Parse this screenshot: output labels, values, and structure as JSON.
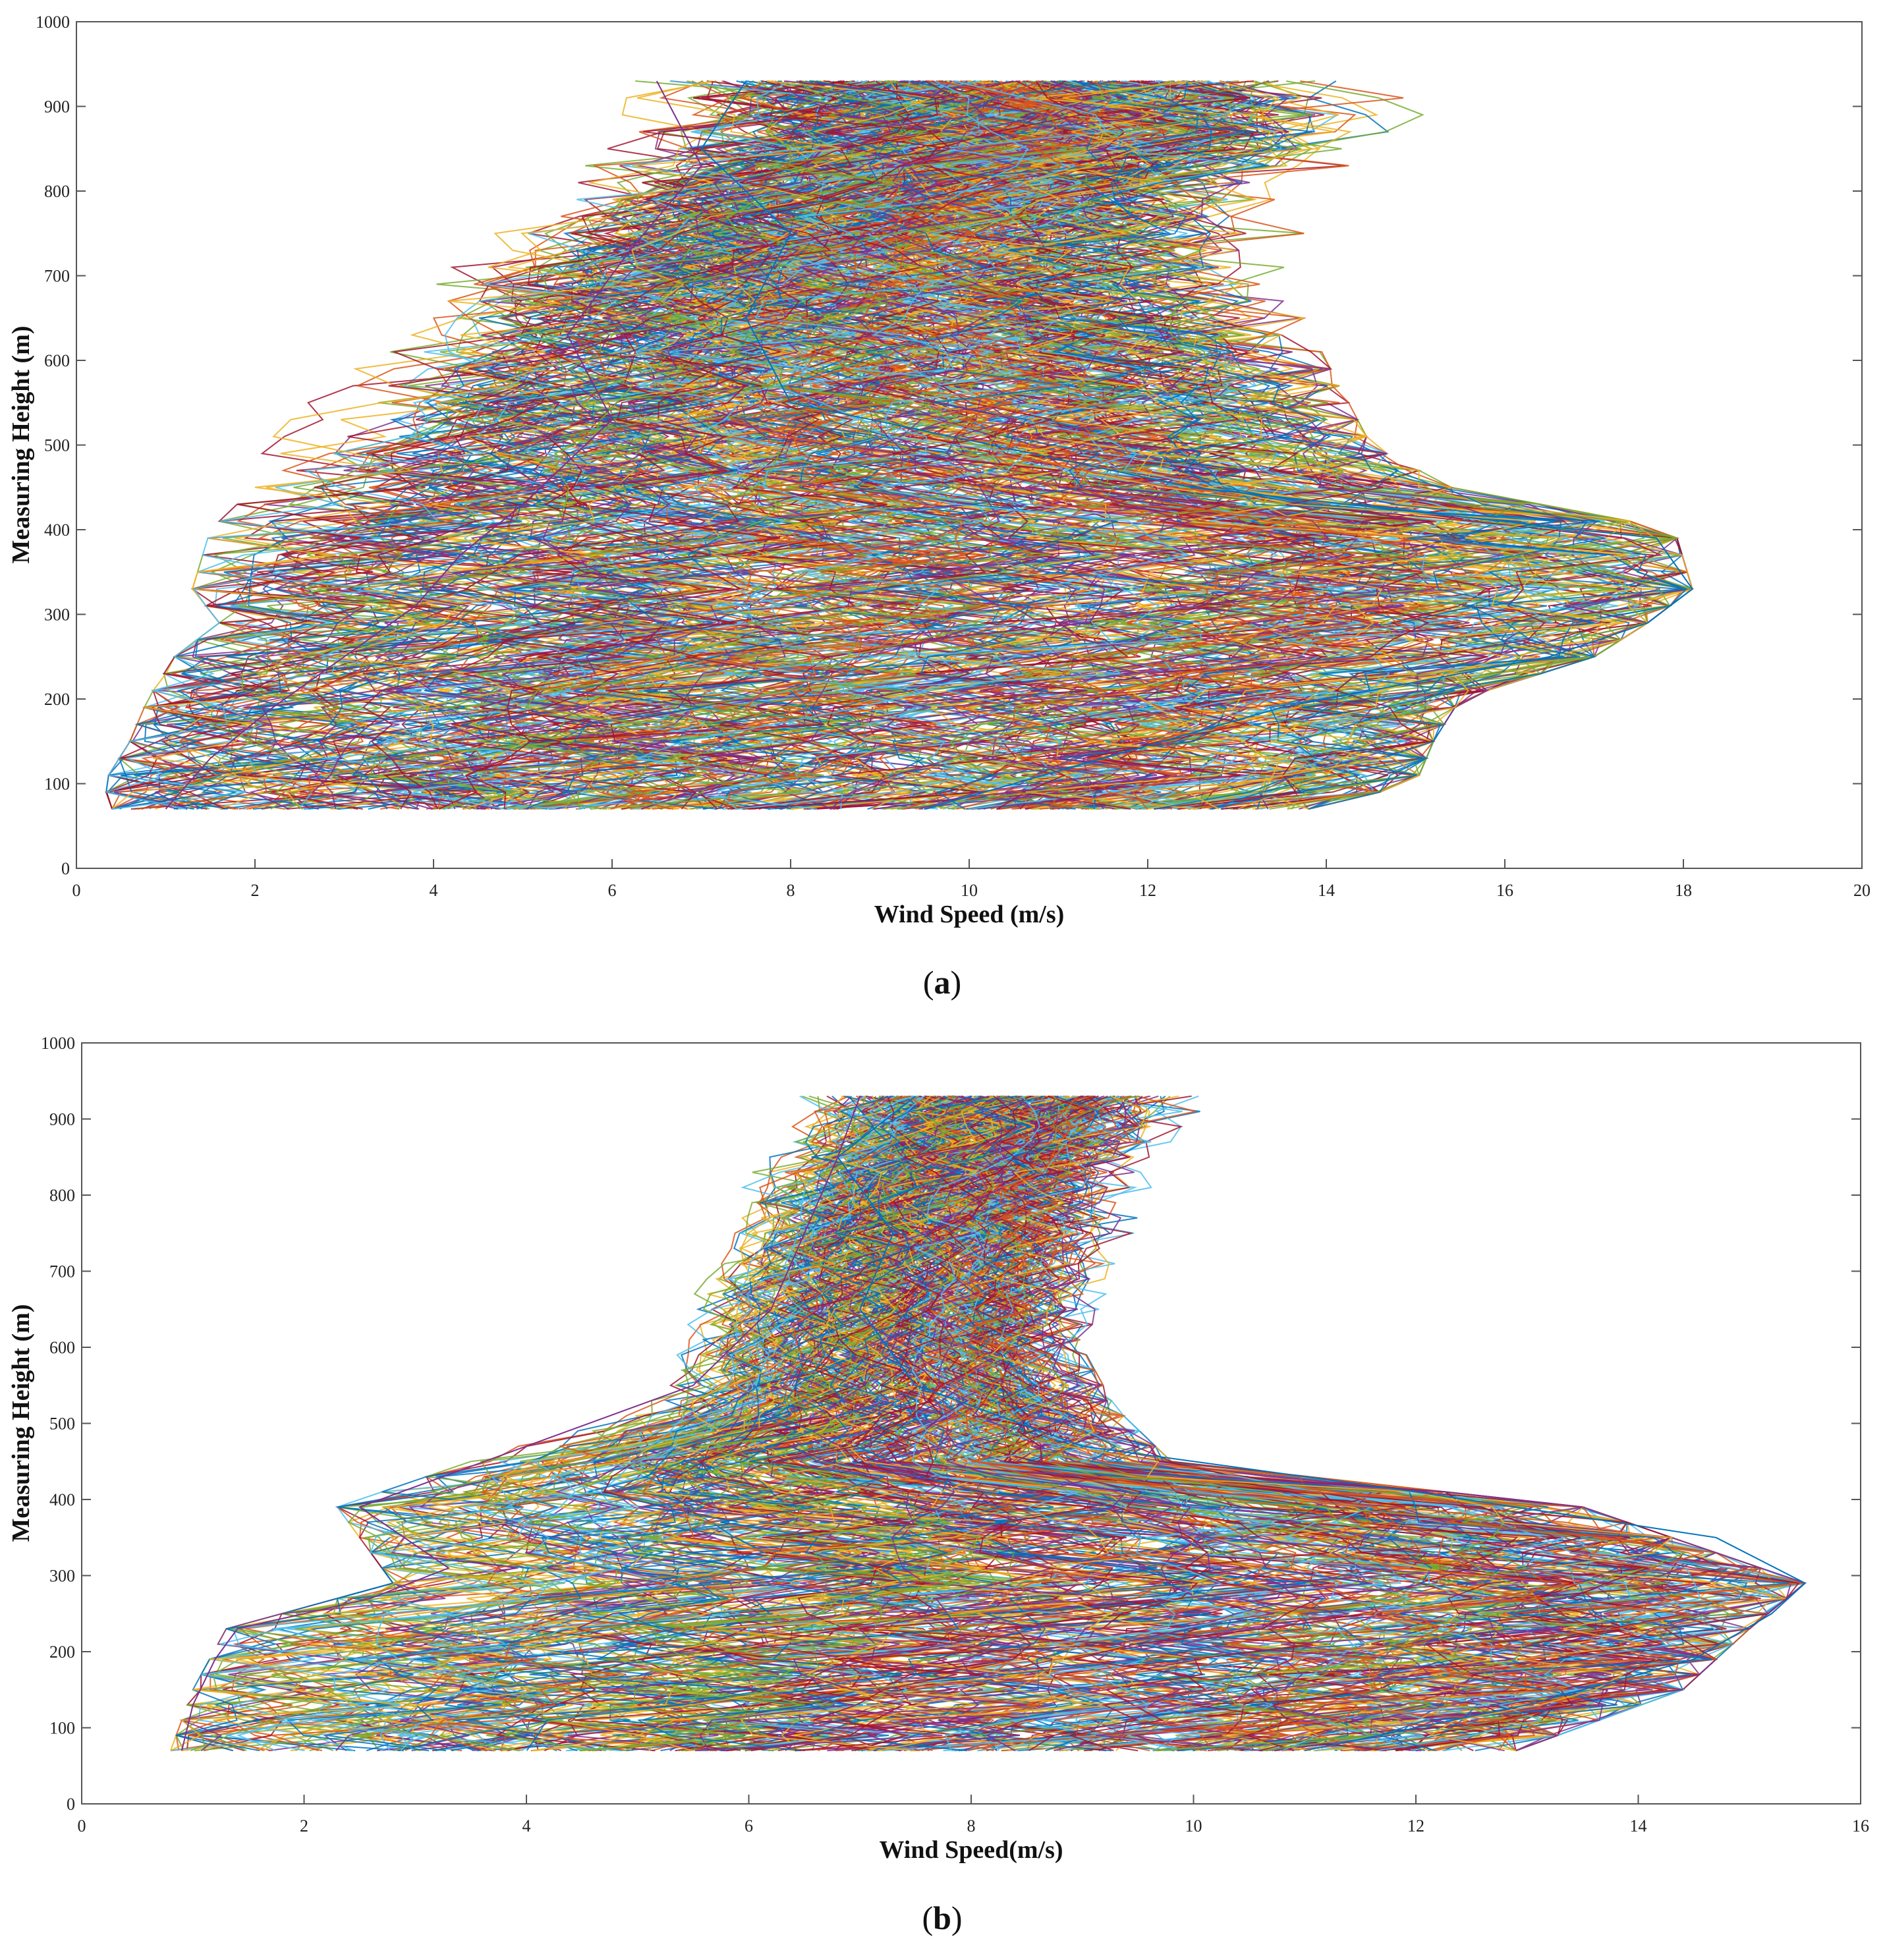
{
  "chart_data": [
    {
      "type": "line",
      "panel_label_bold": "a",
      "xlabel": "Wind Speed (m/s)",
      "ylabel": "Measuring Height (m)",
      "xlim": [
        0,
        20
      ],
      "ylim": [
        0,
        1000
      ],
      "xticks": [
        0,
        2,
        4,
        6,
        8,
        10,
        12,
        14,
        16,
        18,
        20
      ],
      "yticks": [
        0,
        100,
        200,
        300,
        400,
        500,
        600,
        700,
        800,
        900,
        1000
      ],
      "grid": false,
      "heights": [
        70,
        90,
        110,
        130,
        150,
        170,
        190,
        210,
        230,
        250,
        270,
        290,
        310,
        330,
        350,
        370,
        390,
        410,
        430,
        450,
        470,
        490,
        510,
        530,
        550,
        570,
        590,
        610,
        630,
        650,
        670,
        690,
        710,
        730,
        750,
        770,
        790,
        810,
        830,
        850,
        870,
        890,
        910,
        930
      ],
      "series_count": 420,
      "series_colors": [
        "#0072BD",
        "#D95319",
        "#EDB120",
        "#7E2F8E",
        "#77AC30",
        "#4DBEEE",
        "#A2142F"
      ],
      "envelope": {
        "heights": [
          70,
          100,
          150,
          200,
          250,
          290,
          330,
          400,
          450,
          500,
          600,
          700,
          800,
          870,
          930
        ],
        "min": [
          0.4,
          0.3,
          0.6,
          0.8,
          1.1,
          1.6,
          1.3,
          1.5,
          2.0,
          2.1,
          2.4,
          2.5,
          3.1,
          3.0,
          3.5
        ],
        "max": [
          13.8,
          15.0,
          15.2,
          15.5,
          17.0,
          17.6,
          18.1,
          17.9,
          15.4,
          14.5,
          14.0,
          13.5,
          14.0,
          15.8,
          15.0
        ]
      },
      "representative_series": [
        {
          "heights": [
            70,
            130,
            190,
            250,
            290,
            330,
            390,
            450,
            550,
            650,
            750,
            850,
            930
          ],
          "values": [
            9.5,
            11.5,
            13.5,
            16.5,
            17.6,
            18.1,
            17.7,
            12.5,
            8.0,
            7.5,
            8.0,
            7.0,
            7.5
          ]
        },
        {
          "heights": [
            70,
            130,
            190,
            250,
            310,
            370,
            430,
            530,
            630,
            730,
            830,
            930
          ],
          "values": [
            1.0,
            1.5,
            2.2,
            3.0,
            3.8,
            4.3,
            5.0,
            6.0,
            5.5,
            6.2,
            7.0,
            6.5
          ]
        }
      ]
    },
    {
      "type": "line",
      "panel_label_bold": "b",
      "xlabel": "Wind Speed(m/s)",
      "ylabel": "Measuring Height (m)",
      "xlim": [
        0,
        16
      ],
      "ylim": [
        0,
        1000
      ],
      "xticks": [
        0,
        2,
        4,
        6,
        8,
        10,
        12,
        14,
        16
      ],
      "yticks": [
        0,
        100,
        200,
        300,
        400,
        500,
        600,
        700,
        800,
        900,
        1000
      ],
      "grid": false,
      "heights": [
        70,
        90,
        110,
        130,
        150,
        170,
        190,
        210,
        230,
        250,
        270,
        290,
        310,
        330,
        350,
        370,
        390,
        410,
        430,
        450,
        470,
        490,
        510,
        530,
        550,
        570,
        590,
        610,
        630,
        650,
        670,
        690,
        710,
        730,
        750,
        770,
        790,
        810,
        830,
        850,
        870,
        890,
        910,
        930
      ],
      "series_count": 380,
      "series_colors": [
        "#0072BD",
        "#D95319",
        "#EDB120",
        "#7E2F8E",
        "#77AC30",
        "#4DBEEE",
        "#A2142F"
      ],
      "envelope": {
        "heights": [
          70,
          150,
          230,
          290,
          390,
          450,
          520,
          600,
          700,
          800,
          930
        ],
        "min": [
          0.8,
          1.0,
          1.3,
          2.8,
          2.3,
          3.5,
          5.0,
          5.1,
          5.0,
          4.9,
          5.2
        ],
        "max": [
          12.9,
          14.4,
          15.0,
          15.5,
          13.5,
          9.8,
          9.3,
          9.0,
          9.3,
          9.7,
          10.4
        ]
      },
      "representative_series": [
        {
          "heights": [
            70,
            130,
            190,
            250,
            290,
            350,
            410,
            470,
            550,
            650,
            750,
            850,
            930
          ],
          "values": [
            11.0,
            13.0,
            14.5,
            15.2,
            15.5,
            14.7,
            12.0,
            9.0,
            7.5,
            7.0,
            7.3,
            6.8,
            7.5
          ]
        },
        {
          "heights": [
            70,
            130,
            190,
            230,
            270,
            310,
            390,
            470,
            550,
            650,
            750,
            850,
            930
          ],
          "values": [
            0.9,
            1.0,
            1.2,
            1.4,
            2.6,
            3.3,
            2.5,
            4.0,
            5.5,
            6.2,
            6.5,
            6.8,
            7.0
          ]
        }
      ]
    }
  ]
}
